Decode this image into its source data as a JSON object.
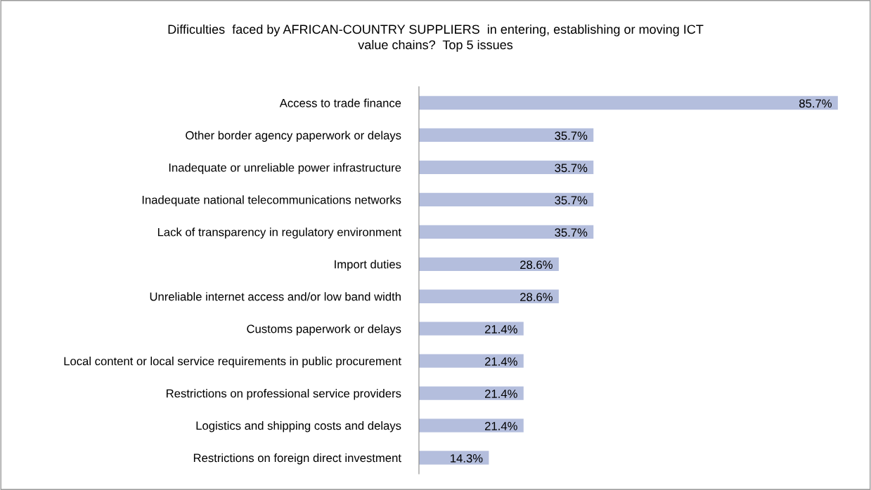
{
  "chart_data": {
    "type": "bar",
    "orientation": "horizontal",
    "title": "Difficulties  faced by AFRICAN-COUNTRY SUPPLIERS  in entering, establishing or moving ICT\nvalue chains?  Top 5 issues",
    "categories": [
      "Access to trade finance",
      "Other border agency paperwork or delays",
      "Inadequate or unreliable power infrastructure",
      "Inadequate national telecommunications networks",
      "Lack of transparency in regulatory environment",
      "Import duties",
      "Unreliable internet access and/or low band width",
      "Customs paperwork or delays",
      "Local content or local service requirements in public procurement",
      "Restrictions on professional service providers",
      "Logistics and shipping costs and delays",
      "Restrictions on foreign direct investment"
    ],
    "values": [
      85.7,
      35.7,
      35.7,
      35.7,
      35.7,
      28.6,
      28.6,
      21.4,
      21.4,
      21.4,
      21.4,
      14.3
    ],
    "value_labels": [
      "85.7%",
      "35.7%",
      "35.7%",
      "35.7%",
      "35.7%",
      "28.6%",
      "28.6%",
      "21.4%",
      "21.4%",
      "21.4%",
      "21.4%",
      "14.3%"
    ],
    "color": "#b4bedd",
    "xlim": [
      0,
      85.7
    ],
    "tick_labels": "y",
    "grid": false,
    "legend": false
  }
}
